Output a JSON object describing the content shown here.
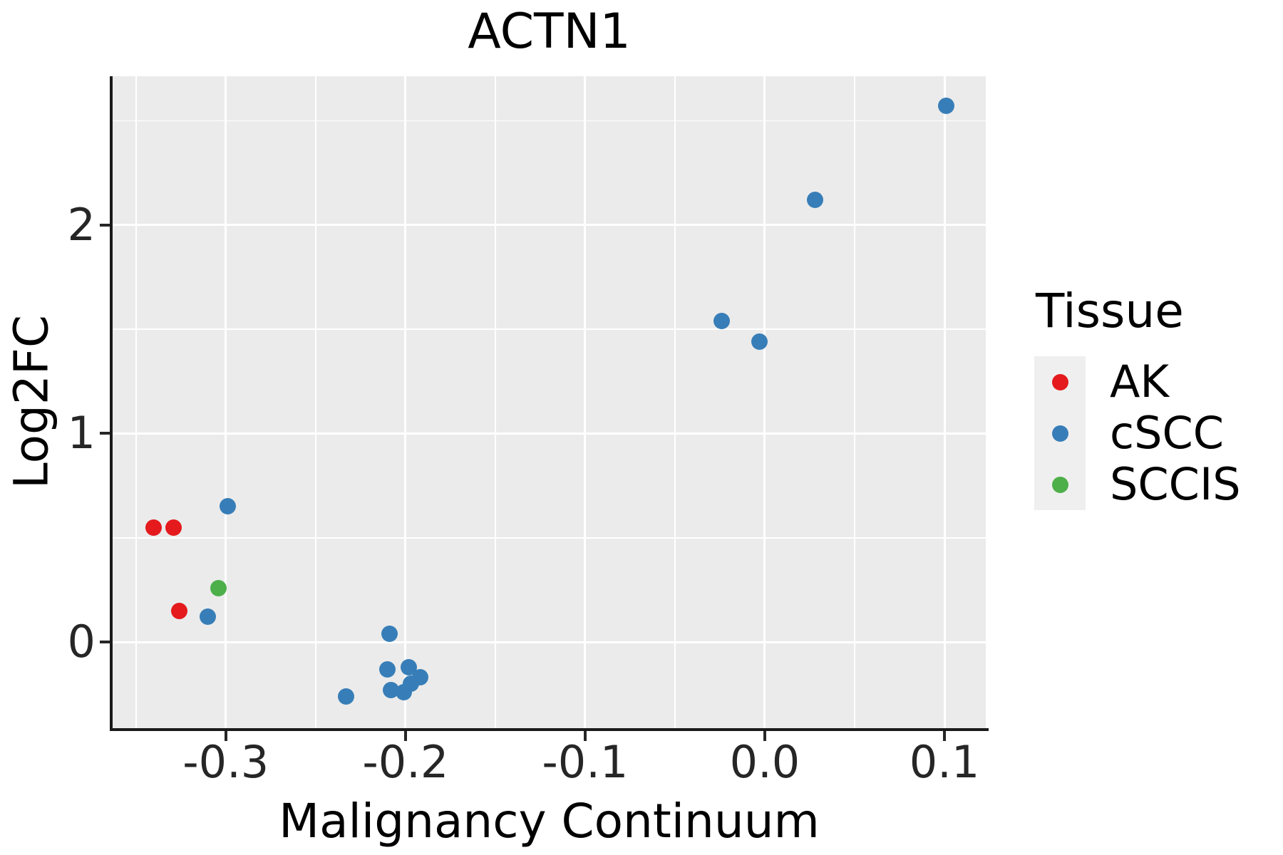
{
  "chart_data": {
    "type": "scatter",
    "title": "ACTN1",
    "xlabel": "Malignancy Continuum",
    "ylabel": "Log2FC",
    "xlim": [
      -0.363,
      0.123
    ],
    "ylim": [
      -0.413,
      2.713
    ],
    "grid": "on",
    "panel_bg": "#EBEBEB",
    "grid_color": "#FFFFFF",
    "x_ticks": {
      "values": [
        -0.3,
        -0.2,
        -0.1,
        0.0,
        0.1
      ],
      "labels": [
        "-0.3",
        "-0.2",
        "-0.1",
        "0.0",
        "0.1"
      ]
    },
    "y_ticks": {
      "values": [
        0,
        1,
        2
      ],
      "labels": [
        "0",
        "1",
        "2"
      ]
    },
    "x_minor_ticks": [
      -0.35,
      -0.25,
      -0.15,
      -0.05,
      0.05
    ],
    "y_minor_ticks": [
      0.5,
      1.5,
      2.5
    ],
    "series": [
      {
        "name": "AK",
        "color": "#E41A1C",
        "points": [
          [
            -0.34,
            0.55
          ],
          [
            -0.329,
            0.55
          ],
          [
            -0.326,
            0.15
          ]
        ]
      },
      {
        "name": "cSCC",
        "color": "#377EB8",
        "points": [
          [
            -0.299,
            0.65
          ],
          [
            -0.31,
            0.12
          ],
          [
            -0.209,
            0.04
          ],
          [
            -0.233,
            -0.26
          ],
          [
            -0.21,
            -0.13
          ],
          [
            -0.198,
            -0.12
          ],
          [
            -0.192,
            -0.17
          ],
          [
            -0.197,
            -0.2
          ],
          [
            -0.208,
            -0.23
          ],
          [
            -0.201,
            -0.24
          ],
          [
            -0.024,
            1.54
          ],
          [
            -0.003,
            1.44
          ],
          [
            0.028,
            2.12
          ],
          [
            0.101,
            2.57
          ]
        ]
      },
      {
        "name": "SCCIS",
        "color": "#4DAF4A",
        "points": [
          [
            -0.304,
            0.26
          ]
        ]
      }
    ],
    "legend": {
      "title": "Tissue",
      "position": "right",
      "entries": [
        {
          "label": "AK",
          "color": "#E41A1C"
        },
        {
          "label": "cSCC",
          "color": "#377EB8"
        },
        {
          "label": "SCCIS",
          "color": "#4DAF4A"
        }
      ]
    }
  }
}
